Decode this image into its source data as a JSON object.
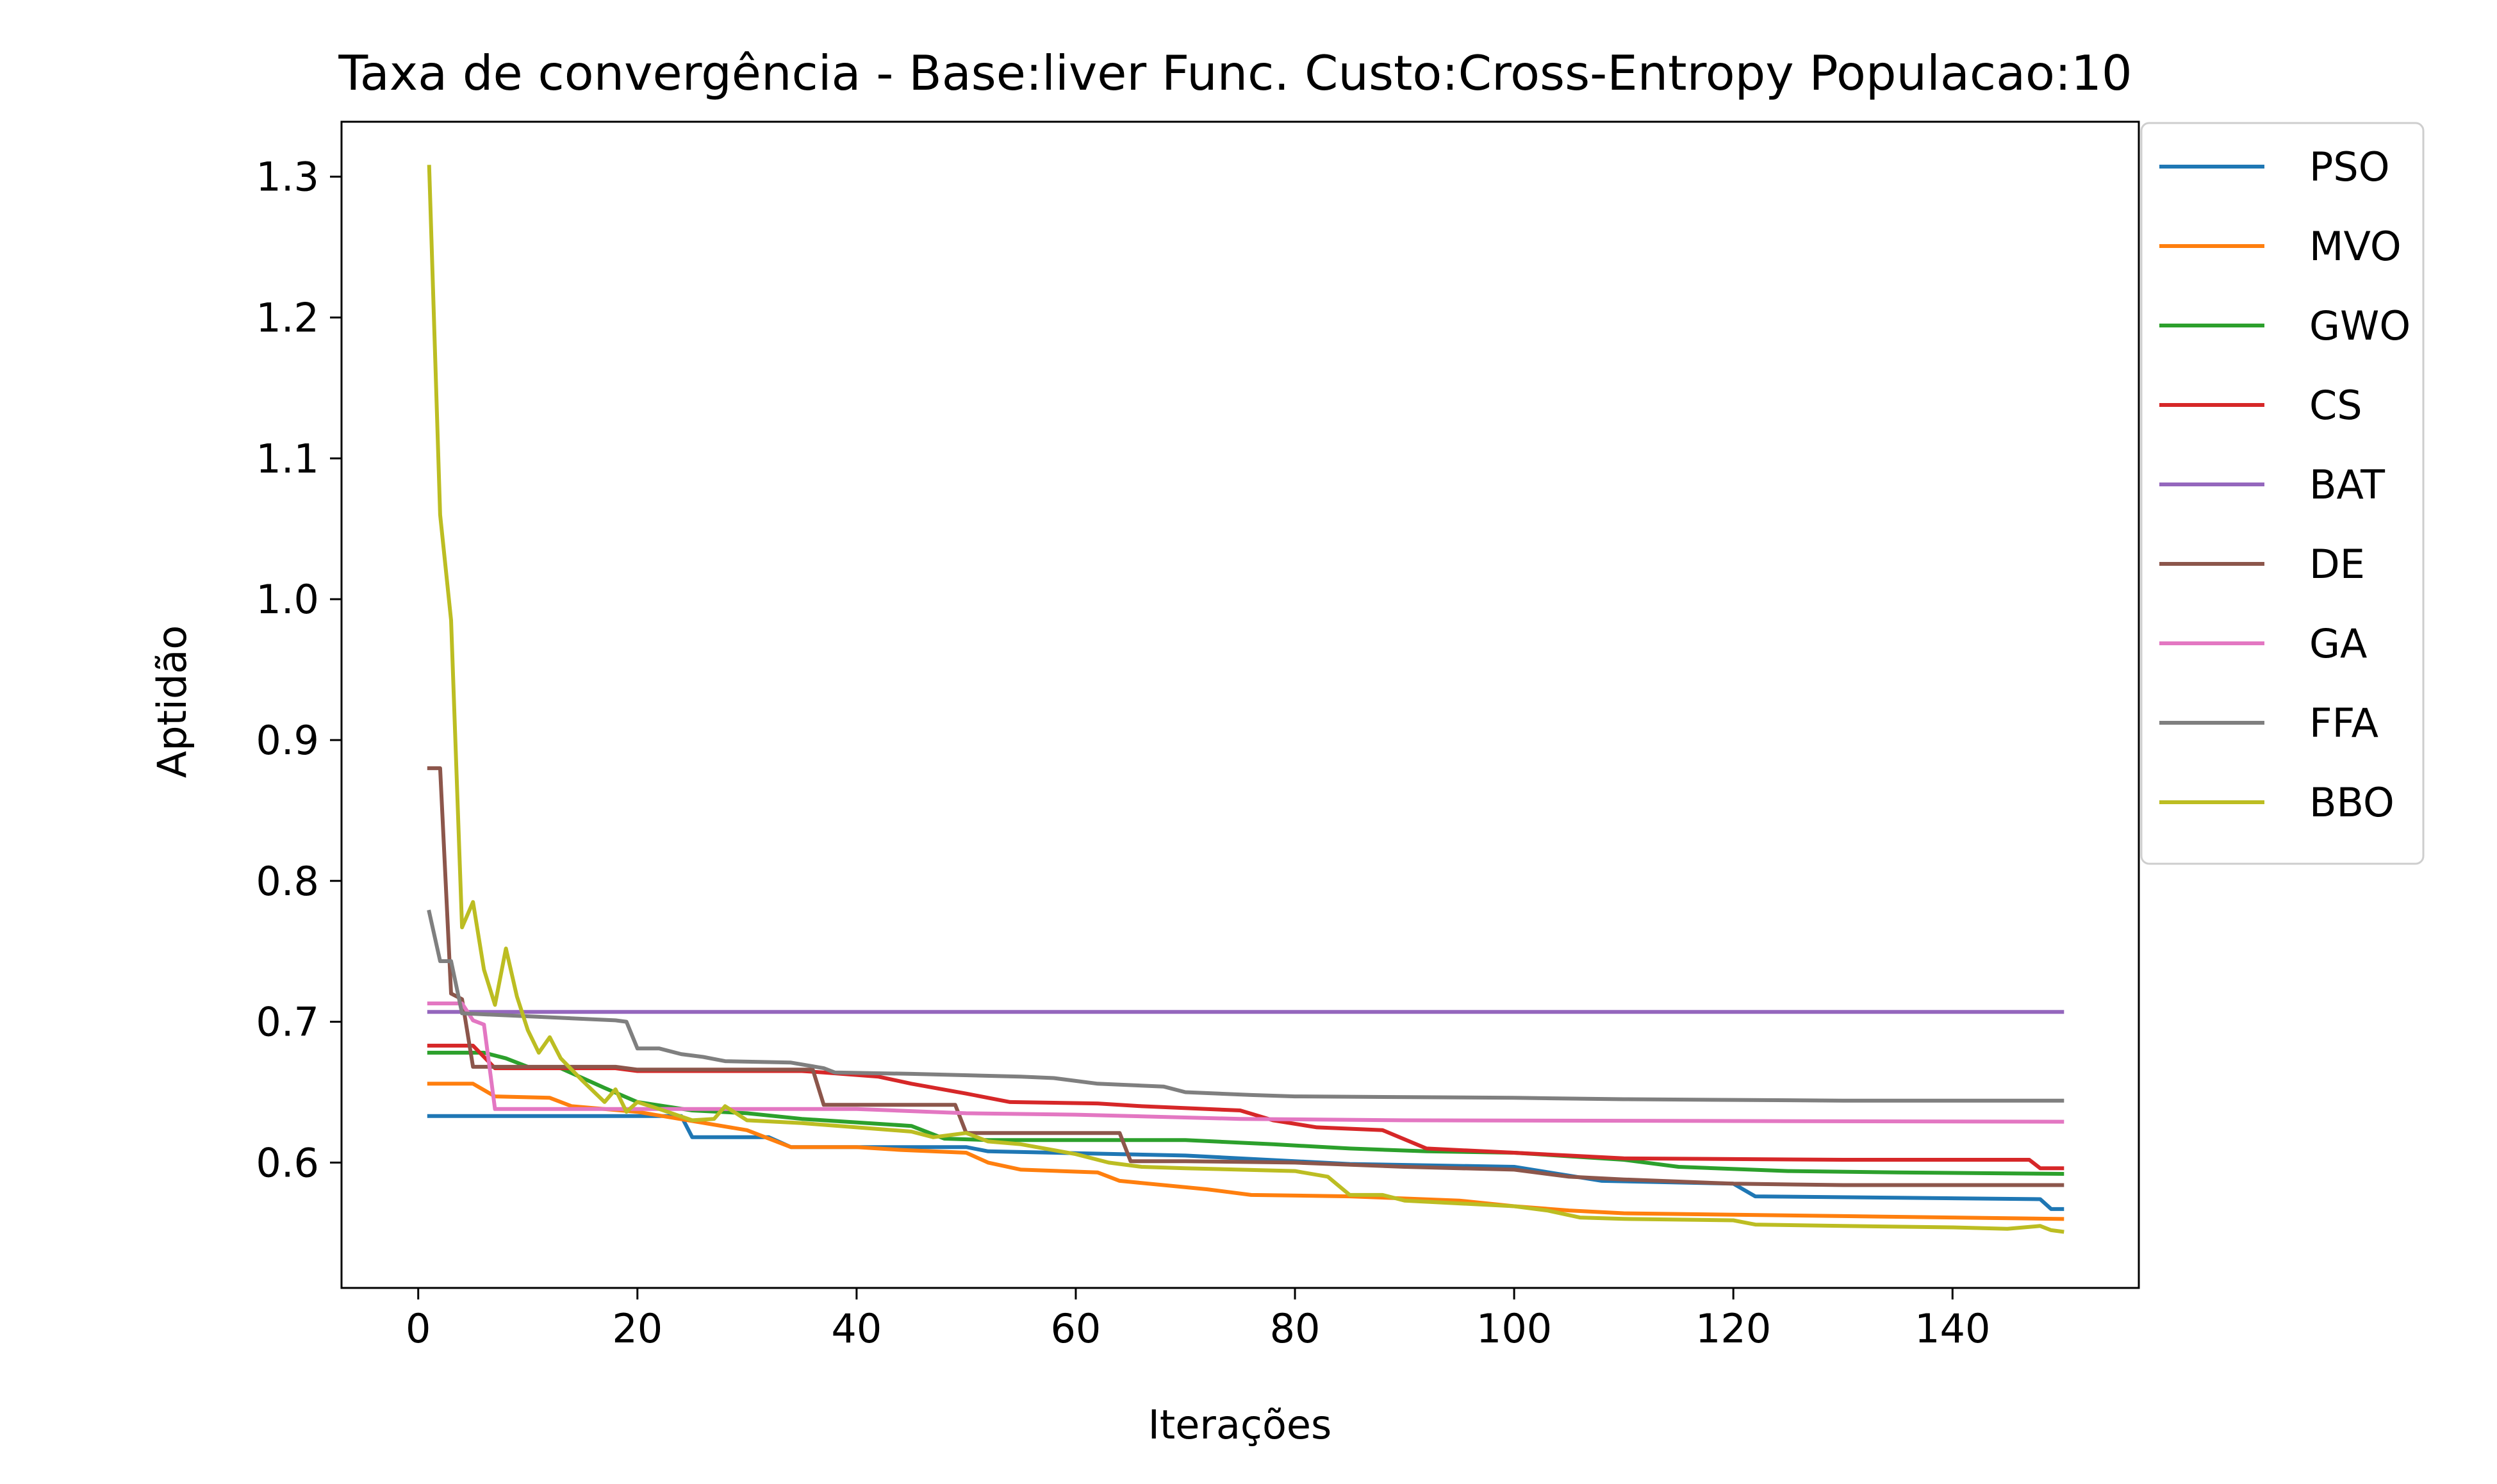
{
  "chart_data": {
    "type": "line",
    "title": "Taxa de convergência - Base:liver Func. Custo:Cross-Entropy Populacao:10",
    "xlabel": "Iterações",
    "ylabel": "Aptidão",
    "xlim": [
      -7,
      157
    ],
    "ylim": [
      0.511,
      1.339
    ],
    "xticks": [
      0,
      20,
      40,
      60,
      80,
      100,
      120,
      140
    ],
    "xtick_labels": [
      "0",
      "20",
      "40",
      "60",
      "80",
      "100",
      "120",
      "140"
    ],
    "yticks": [
      0.6,
      0.7,
      0.8,
      0.9,
      1.0,
      1.1,
      1.2,
      1.3
    ],
    "ytick_labels": [
      "0.6",
      "0.7",
      "0.8",
      "0.9",
      "1.0",
      "1.1",
      "1.2",
      "1.3"
    ],
    "grid": false,
    "legend_position": "outside-top-right",
    "series": [
      {
        "name": "PSO",
        "color": "#1f77b4",
        "points": [
          [
            1,
            0.633
          ],
          [
            24,
            0.633
          ],
          [
            25,
            0.618
          ],
          [
            32,
            0.618
          ],
          [
            34,
            0.611
          ],
          [
            50,
            0.611
          ],
          [
            52,
            0.608
          ],
          [
            70,
            0.605
          ],
          [
            85,
            0.599
          ],
          [
            100,
            0.597
          ],
          [
            108,
            0.587
          ],
          [
            120,
            0.585
          ],
          [
            122,
            0.576
          ],
          [
            135,
            0.575
          ],
          [
            148,
            0.574
          ],
          [
            149,
            0.567
          ],
          [
            150,
            0.567
          ]
        ]
      },
      {
        "name": "MVO",
        "color": "#ff7f0e",
        "points": [
          [
            1,
            0.656
          ],
          [
            5,
            0.656
          ],
          [
            7,
            0.647
          ],
          [
            12,
            0.646
          ],
          [
            14,
            0.64
          ],
          [
            20,
            0.636
          ],
          [
            30,
            0.623
          ],
          [
            34,
            0.611
          ],
          [
            40,
            0.611
          ],
          [
            44,
            0.609
          ],
          [
            50,
            0.607
          ],
          [
            52,
            0.6
          ],
          [
            55,
            0.595
          ],
          [
            62,
            0.593
          ],
          [
            64,
            0.587
          ],
          [
            72,
            0.581
          ],
          [
            76,
            0.577
          ],
          [
            85,
            0.576
          ],
          [
            95,
            0.573
          ],
          [
            100,
            0.569
          ],
          [
            105,
            0.566
          ],
          [
            110,
            0.564
          ],
          [
            120,
            0.563
          ],
          [
            130,
            0.562
          ],
          [
            140,
            0.561
          ],
          [
            150,
            0.56
          ]
        ]
      },
      {
        "name": "GWO",
        "color": "#2ca02c",
        "points": [
          [
            1,
            0.678
          ],
          [
            6,
            0.678
          ],
          [
            8,
            0.674
          ],
          [
            10,
            0.668
          ],
          [
            13,
            0.667
          ],
          [
            15,
            0.66
          ],
          [
            17,
            0.653
          ],
          [
            20,
            0.643
          ],
          [
            25,
            0.637
          ],
          [
            30,
            0.635
          ],
          [
            35,
            0.631
          ],
          [
            45,
            0.626
          ],
          [
            48,
            0.617
          ],
          [
            52,
            0.616
          ],
          [
            70,
            0.616
          ],
          [
            78,
            0.613
          ],
          [
            85,
            0.61
          ],
          [
            92,
            0.608
          ],
          [
            100,
            0.607
          ],
          [
            110,
            0.602
          ],
          [
            115,
            0.597
          ],
          [
            125,
            0.594
          ],
          [
            135,
            0.593
          ],
          [
            150,
            0.592
          ]
        ]
      },
      {
        "name": "CS",
        "color": "#d62728",
        "points": [
          [
            1,
            0.683
          ],
          [
            5,
            0.683
          ],
          [
            7,
            0.667
          ],
          [
            18,
            0.667
          ],
          [
            20,
            0.665
          ],
          [
            35,
            0.665
          ],
          [
            37,
            0.664
          ],
          [
            42,
            0.661
          ],
          [
            45,
            0.656
          ],
          [
            50,
            0.649
          ],
          [
            54,
            0.643
          ],
          [
            62,
            0.642
          ],
          [
            66,
            0.64
          ],
          [
            75,
            0.637
          ],
          [
            78,
            0.63
          ],
          [
            82,
            0.625
          ],
          [
            88,
            0.623
          ],
          [
            92,
            0.61
          ],
          [
            100,
            0.607
          ],
          [
            105,
            0.605
          ],
          [
            110,
            0.603
          ],
          [
            130,
            0.602
          ],
          [
            147,
            0.602
          ],
          [
            148,
            0.596
          ],
          [
            150,
            0.596
          ]
        ]
      },
      {
        "name": "BAT",
        "color": "#9467bd",
        "points": [
          [
            1,
            0.707
          ],
          [
            150,
            0.707
          ]
        ]
      },
      {
        "name": "DE",
        "color": "#8c564b",
        "points": [
          [
            1,
            0.88
          ],
          [
            2,
            0.88
          ],
          [
            3,
            0.72
          ],
          [
            4,
            0.716
          ],
          [
            5,
            0.668
          ],
          [
            18,
            0.668
          ],
          [
            20,
            0.666
          ],
          [
            36,
            0.666
          ],
          [
            37,
            0.641
          ],
          [
            49,
            0.641
          ],
          [
            50,
            0.621
          ],
          [
            64,
            0.621
          ],
          [
            65,
            0.601
          ],
          [
            70,
            0.601
          ],
          [
            80,
            0.6
          ],
          [
            90,
            0.597
          ],
          [
            100,
            0.595
          ],
          [
            105,
            0.59
          ],
          [
            110,
            0.588
          ],
          [
            120,
            0.585
          ],
          [
            130,
            0.584
          ],
          [
            150,
            0.584
          ]
        ]
      },
      {
        "name": "GA",
        "color": "#e377c2",
        "points": [
          [
            1,
            0.713
          ],
          [
            4,
            0.713
          ],
          [
            5,
            0.701
          ],
          [
            6,
            0.698
          ],
          [
            7,
            0.638
          ],
          [
            40,
            0.638
          ],
          [
            50,
            0.635
          ],
          [
            60,
            0.634
          ],
          [
            75,
            0.631
          ],
          [
            90,
            0.63
          ],
          [
            150,
            0.629
          ]
        ]
      },
      {
        "name": "FFA",
        "color": "#7f7f7f",
        "points": [
          [
            1,
            0.778
          ],
          [
            2,
            0.743
          ],
          [
            3,
            0.743
          ],
          [
            4,
            0.706
          ],
          [
            18,
            0.701
          ],
          [
            19,
            0.7
          ],
          [
            20,
            0.681
          ],
          [
            22,
            0.681
          ],
          [
            24,
            0.677
          ],
          [
            26,
            0.675
          ],
          [
            28,
            0.672
          ],
          [
            34,
            0.671
          ],
          [
            37,
            0.667
          ],
          [
            38,
            0.664
          ],
          [
            45,
            0.663
          ],
          [
            55,
            0.661
          ],
          [
            58,
            0.66
          ],
          [
            62,
            0.656
          ],
          [
            68,
            0.654
          ],
          [
            70,
            0.65
          ],
          [
            76,
            0.648
          ],
          [
            80,
            0.647
          ],
          [
            100,
            0.646
          ],
          [
            110,
            0.645
          ],
          [
            130,
            0.644
          ],
          [
            150,
            0.644
          ]
        ]
      },
      {
        "name": "BBO",
        "color": "#bcbd22",
        "points": [
          [
            1,
            1.307
          ],
          [
            2,
            1.06
          ],
          [
            3,
            0.985
          ],
          [
            4,
            0.767
          ],
          [
            5,
            0.785
          ],
          [
            6,
            0.737
          ],
          [
            7,
            0.712
          ],
          [
            8,
            0.752
          ],
          [
            9,
            0.718
          ],
          [
            10,
            0.694
          ],
          [
            11,
            0.678
          ],
          [
            12,
            0.689
          ],
          [
            13,
            0.674
          ],
          [
            15,
            0.658
          ],
          [
            17,
            0.643
          ],
          [
            18,
            0.652
          ],
          [
            19,
            0.636
          ],
          [
            20,
            0.643
          ],
          [
            22,
            0.638
          ],
          [
            25,
            0.63
          ],
          [
            27,
            0.631
          ],
          [
            28,
            0.64
          ],
          [
            30,
            0.63
          ],
          [
            35,
            0.628
          ],
          [
            40,
            0.625
          ],
          [
            45,
            0.622
          ],
          [
            47,
            0.618
          ],
          [
            50,
            0.621
          ],
          [
            52,
            0.615
          ],
          [
            55,
            0.613
          ],
          [
            60,
            0.606
          ],
          [
            63,
            0.6
          ],
          [
            66,
            0.597
          ],
          [
            70,
            0.596
          ],
          [
            80,
            0.594
          ],
          [
            83,
            0.59
          ],
          [
            85,
            0.577
          ],
          [
            88,
            0.577
          ],
          [
            90,
            0.573
          ],
          [
            100,
            0.569
          ],
          [
            103,
            0.566
          ],
          [
            106,
            0.561
          ],
          [
            110,
            0.56
          ],
          [
            120,
            0.559
          ],
          [
            122,
            0.556
          ],
          [
            130,
            0.555
          ],
          [
            140,
            0.554
          ],
          [
            145,
            0.553
          ],
          [
            148,
            0.555
          ],
          [
            149,
            0.552
          ],
          [
            150,
            0.551
          ]
        ]
      }
    ]
  }
}
